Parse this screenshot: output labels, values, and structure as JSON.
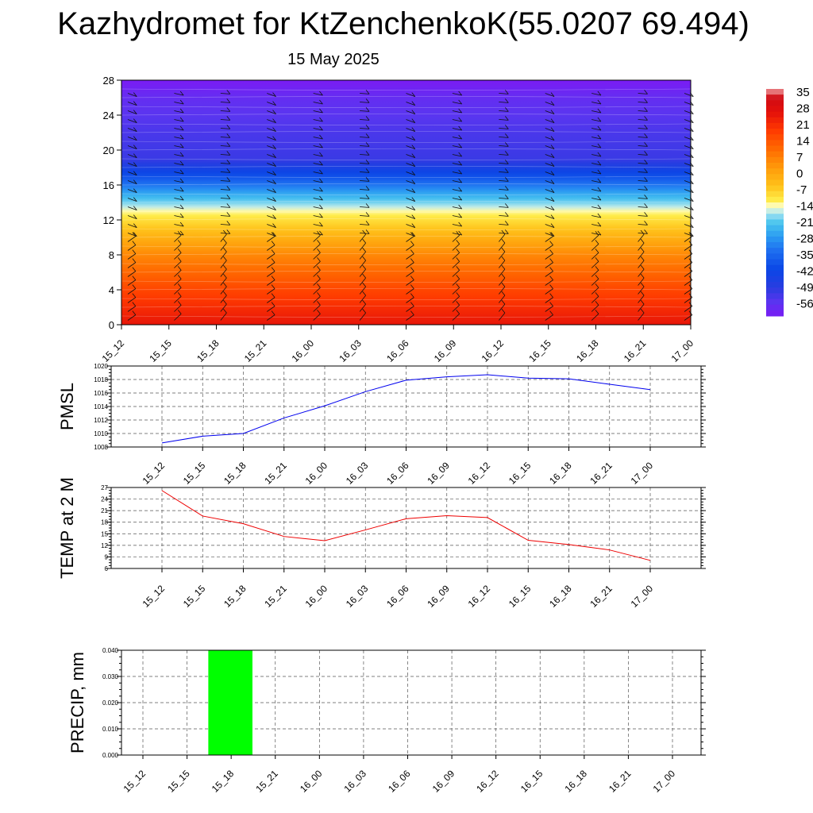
{
  "header": {
    "title": "Kazhydromet for KtZenchenkoK(55.0207 69.494)",
    "date": "15 May 2025"
  },
  "chart_data": [
    {
      "type": "heatmap",
      "x_ticks": [
        "15_12",
        "15_15",
        "15_18",
        "15_21",
        "16_00",
        "16_03",
        "16_06",
        "16_09",
        "16_12",
        "16_15",
        "16_18",
        "16_21",
        "17_00"
      ],
      "y_ticks": [
        "0",
        "4",
        "8",
        "12",
        "16",
        "20",
        "24",
        "28"
      ],
      "ylim": [
        0,
        28
      ],
      "colorbar_labels": [
        "35",
        "28",
        "21",
        "14",
        "7",
        "0",
        "-7",
        "-14",
        "-21",
        "-28",
        "-35",
        "-42",
        "-49",
        "-56"
      ],
      "colorbar_range": [
        -60,
        38
      ],
      "temperature_profile": [
        {
          "y": 0,
          "value": 27
        },
        {
          "y": 4,
          "value": 18
        },
        {
          "y": 8,
          "value": 7
        },
        {
          "y": 12,
          "value": -8
        },
        {
          "y": 13,
          "value": -12
        },
        {
          "y": 15,
          "value": -24
        },
        {
          "y": 17,
          "value": -38
        },
        {
          "y": 19,
          "value": -50
        },
        {
          "y": 22,
          "value": -52
        },
        {
          "y": 26,
          "value": -56
        },
        {
          "y": 28,
          "value": -60
        }
      ],
      "grid": false
    },
    {
      "type": "line",
      "ylabel": "PMSL",
      "x": [
        "15_12",
        "15_15",
        "15_18",
        "15_21",
        "16_00",
        "16_03",
        "16_06",
        "16_09",
        "16_12",
        "16_15",
        "16_18",
        "16_21",
        "17_00"
      ],
      "series": [
        {
          "values": [
            1008.6,
            1009.6,
            1010.0,
            1012.3,
            1014.1,
            1016.2,
            1017.9,
            1018.4,
            1018.7,
            1018.2,
            1018.1,
            1017.3,
            1016.5
          ]
        }
      ],
      "ylim": [
        1008,
        1020
      ],
      "y_ticks": [
        "1008",
        "1010",
        "1012",
        "1014",
        "1016",
        "1018",
        "1020"
      ],
      "line_color": "#0000ee",
      "grid": true
    },
    {
      "type": "line",
      "ylabel": "TEMP at 2 M",
      "x": [
        "15_12",
        "15_15",
        "15_18",
        "15_21",
        "16_00",
        "16_03",
        "16_06",
        "16_09",
        "16_12",
        "16_15",
        "16_18",
        "16_21",
        "17_00"
      ],
      "series": [
        {
          "values": [
            26.2,
            19.6,
            17.6,
            14.3,
            13.2,
            16.0,
            18.9,
            19.7,
            19.2,
            13.3,
            12.2,
            10.8,
            8.1
          ]
        }
      ],
      "ylim": [
        6,
        27
      ],
      "y_ticks": [
        "6",
        "9",
        "12",
        "15",
        "18",
        "21",
        "24",
        "27"
      ],
      "line_color": "#ee0000",
      "grid": true
    },
    {
      "type": "bar",
      "ylabel": "PRECIP, mm",
      "categories": [
        "15_12",
        "15_15",
        "15_18",
        "15_21",
        "16_00",
        "16_03",
        "16_06",
        "16_09",
        "16_12",
        "16_15",
        "16_18",
        "16_21",
        "17_00"
      ],
      "values": [
        0,
        0,
        0.04,
        0,
        0,
        0,
        0,
        0,
        0,
        0,
        0,
        0,
        0
      ],
      "ylim": [
        0,
        0.04
      ],
      "y_ticks": [
        "0.000",
        "0.010",
        "0.020",
        "0.030",
        "0.040"
      ],
      "bar_color": "#00ff00",
      "grid": true
    }
  ]
}
